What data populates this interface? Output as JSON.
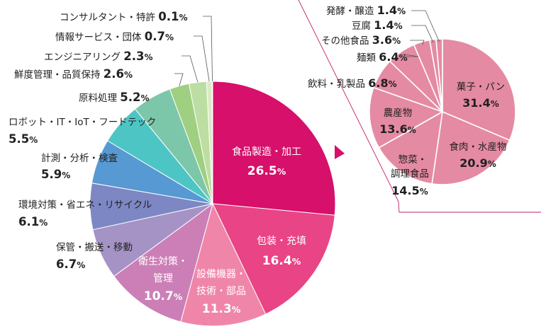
{
  "chart_data": [
    {
      "type": "pie",
      "unit": "%",
      "slices": [
        {
          "label": "食品製造・加工",
          "value": 26.5,
          "color": "#d6106b"
        },
        {
          "label": "包装・充填",
          "value": 16.4,
          "color": "#e94485"
        },
        {
          "label": "設備機器・技術・部品",
          "value": 11.3,
          "color": "#ef86aa"
        },
        {
          "label": "衛生対策・管理",
          "value": 10.7,
          "color": "#cc7fb6"
        },
        {
          "label": "保管・搬送・移動",
          "value": 6.7,
          "color": "#a593c6"
        },
        {
          "label": "環境対策・省エネ・リサイクル",
          "value": 6.1,
          "color": "#7d87c4"
        },
        {
          "label": "計測・分析・検査",
          "value": 5.9,
          "color": "#5699d3"
        },
        {
          "label": "ロボット・IT・IoT・フードテック",
          "value": 5.5,
          "color": "#4ec5c5"
        },
        {
          "label": "原料処理",
          "value": 5.2,
          "color": "#7cc7a9"
        },
        {
          "label": "鮮度管理・品質保持",
          "value": 2.6,
          "color": "#9fcf81"
        },
        {
          "label": "エンジニアリング",
          "value": 2.3,
          "color": "#bcdea2"
        },
        {
          "label": "情報サービス・団体",
          "value": 0.7,
          "color": "#dbeac4"
        },
        {
          "label": "コンサルタント・特許",
          "value": 0.1,
          "color": "#eef3df"
        }
      ]
    },
    {
      "type": "pie",
      "unit": "%",
      "slices": [
        {
          "label": "菓子・パン",
          "value": 31.4,
          "color": "#e58aa3"
        },
        {
          "label": "食肉・水産物",
          "value": 20.9,
          "color": "#e58aa3"
        },
        {
          "label": "惣菜・調理食品",
          "value": 14.5,
          "color": "#e58aa3"
        },
        {
          "label": "農産物",
          "value": 13.6,
          "color": "#e58aa3"
        },
        {
          "label": "飲料・乳製品",
          "value": 6.8,
          "color": "#e58aa3"
        },
        {
          "label": "麺類",
          "value": 6.4,
          "color": "#e58aa3"
        },
        {
          "label": "その他食品",
          "value": 3.6,
          "color": "#e58aa3"
        },
        {
          "label": "豆腐",
          "value": 1.4,
          "color": "#e58aa3"
        },
        {
          "label": "発酵・醸造",
          "value": 1.4,
          "color": "#e58aa3"
        }
      ]
    }
  ]
}
